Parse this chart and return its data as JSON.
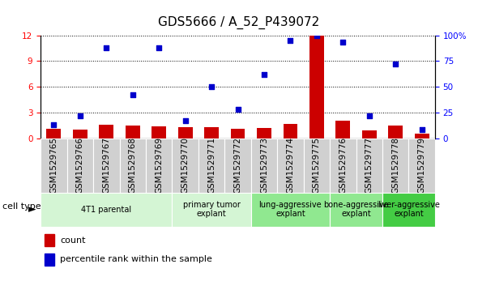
{
  "title": "GDS5666 / A_52_P439072",
  "samples": [
    "GSM1529765",
    "GSM1529766",
    "GSM1529767",
    "GSM1529768",
    "GSM1529769",
    "GSM1529770",
    "GSM1529771",
    "GSM1529772",
    "GSM1529773",
    "GSM1529774",
    "GSM1529775",
    "GSM1529776",
    "GSM1529777",
    "GSM1529778",
    "GSM1529779"
  ],
  "counts": [
    1.1,
    1.0,
    1.6,
    1.5,
    1.4,
    1.3,
    1.3,
    1.1,
    1.2,
    1.7,
    12.0,
    2.0,
    0.9,
    1.5,
    0.5
  ],
  "percentile_ranks": [
    13,
    22,
    88,
    42,
    88,
    17,
    50,
    28,
    62,
    95,
    100,
    93,
    22,
    72,
    8
  ],
  "group_bounds": [
    {
      "start": 0,
      "end": 4,
      "label": "4T1 parental",
      "color": "#d4f5d4"
    },
    {
      "start": 5,
      "end": 7,
      "label": "primary tumor\nexplant",
      "color": "#d4f5d4"
    },
    {
      "start": 8,
      "end": 10,
      "label": "lung-aggressive\nexplant",
      "color": "#90e890"
    },
    {
      "start": 11,
      "end": 12,
      "label": "bone-aggressive\nexplant",
      "color": "#90e890"
    },
    {
      "start": 13,
      "end": 14,
      "label": "liver-aggressive\nexplant",
      "color": "#44cc44"
    }
  ],
  "ylim_left": [
    0,
    12
  ],
  "ylim_right": [
    0,
    100
  ],
  "yticks_left": [
    0,
    3,
    6,
    9,
    12
  ],
  "yticks_right": [
    0,
    25,
    50,
    75,
    100
  ],
  "bar_color": "#cc0000",
  "dot_color": "#0000cc",
  "plot_bg": "#ffffff",
  "sample_box_color": "#d0d0d0",
  "grid_color": "#000000",
  "title_fontsize": 11,
  "tick_fontsize": 7.5,
  "legend_fontsize": 8
}
